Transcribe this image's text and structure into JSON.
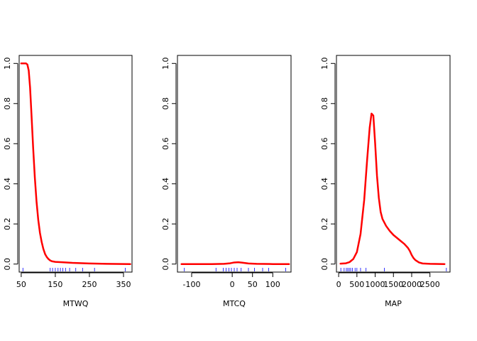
{
  "chart_data": [
    {
      "type": "line",
      "xlabel": "MTWQ",
      "ylabel": "",
      "xlim": [
        44,
        375
      ],
      "ylim": [
        -0.04,
        1.04
      ],
      "x_ticks": [
        50,
        150,
        250,
        350
      ],
      "x_tick_labels": [
        "50",
        "150",
        "250",
        "350"
      ],
      "y_ticks": [
        0.0,
        0.2,
        0.4,
        0.6,
        0.8,
        1.0
      ],
      "y_tick_labels": [
        "0.0",
        "0.2",
        "0.4",
        "0.6",
        "0.8",
        "1.0"
      ],
      "line_color": "#ff0000",
      "rug_color": "#0000ff",
      "series": [
        {
          "x": [
            50,
            60,
            64,
            68,
            72,
            76,
            80,
            85,
            90,
            95,
            100,
            105,
            110,
            115,
            120,
            125,
            130,
            135,
            140,
            150,
            170,
            200,
            250,
            300,
            370
          ],
          "y": [
            1.0,
            1.0,
            1.0,
            0.995,
            0.965,
            0.88,
            0.75,
            0.58,
            0.43,
            0.31,
            0.22,
            0.155,
            0.11,
            0.075,
            0.05,
            0.035,
            0.025,
            0.018,
            0.014,
            0.011,
            0.009,
            0.006,
            0.003,
            0.001,
            0.0
          ]
        }
      ],
      "rug": [
        55,
        135,
        142,
        150,
        158,
        165,
        172,
        180,
        192,
        210,
        230,
        265,
        355
      ]
    },
    {
      "type": "line",
      "xlabel": "MTCQ",
      "ylabel": "",
      "xlim": [
        -135,
        145
      ],
      "ylim": [
        -0.04,
        1.04
      ],
      "x_ticks": [
        -100,
        0,
        50,
        100
      ],
      "x_tick_labels": [
        "-100",
        "0",
        "50",
        "100"
      ],
      "y_ticks": [
        0.0,
        0.2,
        0.4,
        0.6,
        0.8,
        1.0
      ],
      "y_tick_labels": [
        "0.0",
        "0.2",
        "0.4",
        "0.6",
        "0.8",
        "1.0"
      ],
      "line_color": "#ff0000",
      "rug_color": "#0000ff",
      "series": [
        {
          "x": [
            -125,
            -50,
            -20,
            -5,
            5,
            15,
            25,
            40,
            60,
            100,
            140
          ],
          "y": [
            0.0,
            0.0,
            0.001,
            0.004,
            0.008,
            0.009,
            0.007,
            0.003,
            0.001,
            0.0,
            0.0
          ]
        }
      ],
      "rug": [
        -118,
        -40,
        -22,
        -15,
        -8,
        -2,
        5,
        12,
        22,
        40,
        55,
        75,
        90,
        132
      ]
    },
    {
      "type": "line",
      "xlabel": "MAP",
      "ylabel": "",
      "xlim": [
        -60,
        3050
      ],
      "ylim": [
        -0.04,
        1.04
      ],
      "x_ticks": [
        0,
        500,
        1000,
        1500,
        2000,
        2500
      ],
      "x_tick_labels": [
        "0",
        "500",
        "1000",
        "1500",
        "2000",
        "2500"
      ],
      "y_ticks": [
        0.0,
        0.2,
        0.4,
        0.6,
        0.8,
        1.0
      ],
      "y_tick_labels": [
        "0.0",
        "0.2",
        "0.4",
        "0.6",
        "0.8",
        "1.0"
      ],
      "line_color": "#ff0000",
      "rug_color": "#0000ff",
      "series": [
        {
          "x": [
            50,
            200,
            300,
            400,
            500,
            600,
            700,
            780,
            850,
            900,
            950,
            1000,
            1050,
            1100,
            1150,
            1200,
            1300,
            1400,
            1500,
            1600,
            1700,
            1800,
            1900,
            1950,
            2000,
            2050,
            2100,
            2200,
            2300,
            2500,
            2900
          ],
          "y": [
            0.002,
            0.004,
            0.01,
            0.025,
            0.06,
            0.15,
            0.32,
            0.52,
            0.68,
            0.75,
            0.74,
            0.6,
            0.44,
            0.33,
            0.26,
            0.225,
            0.19,
            0.165,
            0.145,
            0.13,
            0.115,
            0.1,
            0.08,
            0.065,
            0.045,
            0.03,
            0.02,
            0.008,
            0.003,
            0.001,
            0.0
          ]
        }
      ],
      "rug": [
        60,
        150,
        210,
        250,
        290,
        330,
        380,
        450,
        500,
        600,
        750,
        1250,
        2950
      ]
    }
  ]
}
